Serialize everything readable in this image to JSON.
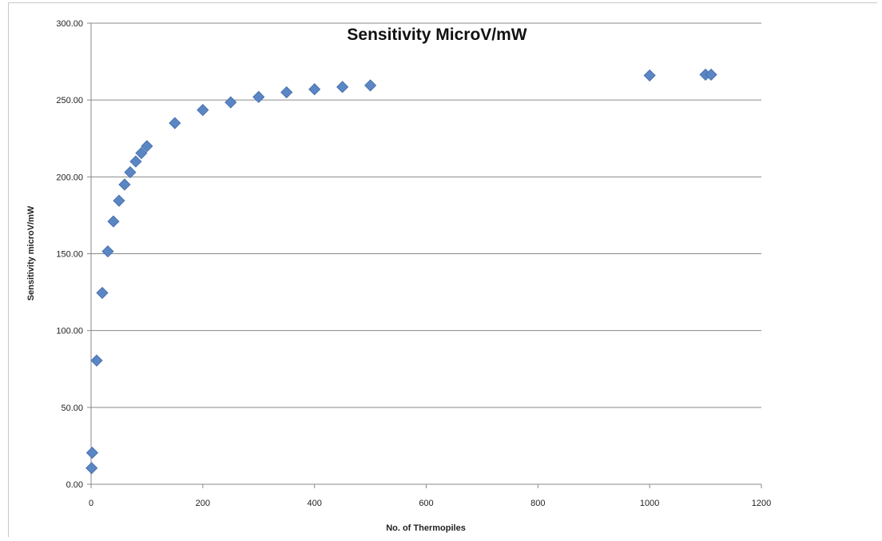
{
  "chart_data": {
    "type": "scatter",
    "title": "Sensitivity MicroV/mW",
    "xlabel": "No. of Thermopiles",
    "ylabel": "Sensitivity microV/mW",
    "xlim": [
      0,
      1200
    ],
    "ylim": [
      0,
      300
    ],
    "x_ticks": [
      "0",
      "200",
      "400",
      "600",
      "800",
      "1000",
      "1200"
    ],
    "y_ticks": [
      "0.00",
      "50.00",
      "100.00",
      "150.00",
      "200.00",
      "250.00",
      "300.00"
    ],
    "grid": true,
    "legend": "none",
    "marker": "diamond",
    "color": "#5b86c4",
    "series": [
      {
        "x": [
          1,
          2,
          10,
          20,
          30,
          40,
          50,
          60,
          70,
          80,
          90,
          100,
          150,
          200,
          250,
          300,
          350,
          400,
          450,
          500,
          1000,
          1100,
          1110
        ],
        "y": [
          10.5,
          20.5,
          80.5,
          124.5,
          151.5,
          171,
          184.5,
          195,
          203,
          210,
          215.5,
          220,
          235,
          243.5,
          248.5,
          252,
          255,
          257,
          258.5,
          259.5,
          266,
          266.5,
          266.5
        ]
      }
    ]
  }
}
